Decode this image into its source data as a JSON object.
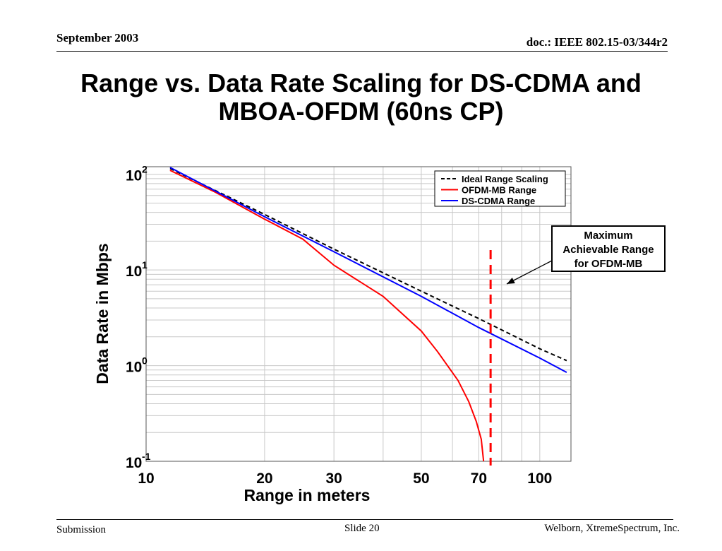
{
  "header": {
    "date": "September 2003",
    "doc": "doc.: IEEE 802.15-03/344r2"
  },
  "title": {
    "line1": "Range vs. Data Rate Scaling for DS-CDMA and",
    "line2": "MBOA-OFDM (60ns CP)"
  },
  "footer": {
    "left": "Submission",
    "center": "Slide 20",
    "right": "Welborn, XtremeSpectrum, Inc."
  },
  "chart_data": {
    "type": "line",
    "xscale": "log",
    "yscale": "log",
    "xlabel": "Range in meters",
    "ylabel": "Data Rate in Mbps",
    "xlim": [
      10,
      120
    ],
    "ylim": [
      0.1,
      120
    ],
    "xticks": [
      {
        "value": 10,
        "label": "10"
      },
      {
        "value": 20,
        "label": "20"
      },
      {
        "value": 30,
        "label": "30"
      },
      {
        "value": 50,
        "label": "50"
      },
      {
        "value": 70,
        "label": "70"
      },
      {
        "value": 100,
        "label": "100"
      }
    ],
    "yticks": [
      {
        "value": 0.1,
        "base": "10",
        "exp": "-1"
      },
      {
        "value": 1,
        "base": "10",
        "exp": "0"
      },
      {
        "value": 10,
        "base": "10",
        "exp": "1"
      },
      {
        "value": 100,
        "base": "10",
        "exp": "2"
      }
    ],
    "grid": true,
    "legend_position": "top-right",
    "series": [
      {
        "name": "Ideal Range Scaling",
        "color": "#000000",
        "dash": true,
        "points": [
          [
            11.5,
            115
          ],
          [
            20,
            38
          ],
          [
            30,
            16.5
          ],
          [
            50,
            6.0
          ],
          [
            70,
            3.1
          ],
          [
            100,
            1.5
          ],
          [
            117,
            1.13
          ]
        ]
      },
      {
        "name": "OFDM-MB Range",
        "color": "#ff0000",
        "dash": false,
        "points": [
          [
            11.5,
            110
          ],
          [
            15,
            65
          ],
          [
            20,
            34
          ],
          [
            25,
            21
          ],
          [
            30,
            11.2
          ],
          [
            40,
            5.3
          ],
          [
            50,
            2.3
          ],
          [
            55,
            1.4
          ],
          [
            62,
            0.7
          ],
          [
            66,
            0.42
          ],
          [
            69,
            0.26
          ],
          [
            71,
            0.17
          ],
          [
            72,
            0.1
          ]
        ]
      },
      {
        "name": "DS-CDMA Range",
        "color": "#0000ff",
        "dash": false,
        "points": [
          [
            11.5,
            118
          ],
          [
            20,
            36
          ],
          [
            30,
            15.5
          ],
          [
            50,
            5.3
          ],
          [
            70,
            2.5
          ],
          [
            100,
            1.2
          ],
          [
            117,
            0.85
          ]
        ]
      }
    ],
    "marker": {
      "x": 75,
      "color": "#ff0000",
      "annotation": [
        "Maximum",
        "Achievable Range",
        "for OFDM-MB"
      ]
    }
  }
}
